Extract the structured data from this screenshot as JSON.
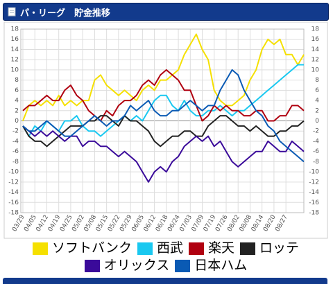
{
  "header": {
    "title": "パ・リーグ　貯金推移"
  },
  "chart_data": {
    "type": "line",
    "categories": [
      "03/29",
      null,
      "04/05",
      null,
      "04/12",
      null,
      "04/19",
      null,
      "04/25",
      null,
      "05/02",
      null,
      "05/08",
      null,
      "05/15",
      null,
      "05/22",
      null,
      "05/29",
      null,
      "06/05",
      null,
      "06/12",
      null,
      "06/18",
      null,
      "06/24",
      null,
      "07/03",
      null,
      "07/09",
      null,
      "07/19",
      null,
      "07/26",
      null,
      "08/02",
      null,
      "08/08",
      null,
      "08/14",
      null,
      "08/20",
      null,
      "08/27",
      null,
      null,
      null
    ],
    "series": [
      {
        "name": "ソフトバンク",
        "color": "#f5e000",
        "values": [
          0,
          3,
          4,
          3,
          4,
          3,
          5,
          3,
          4,
          3,
          4,
          4,
          8,
          9,
          7,
          6,
          5,
          6,
          5,
          4,
          6,
          7,
          6,
          8,
          8,
          9,
          10,
          13,
          15,
          17,
          14,
          12,
          6,
          4,
          3,
          3,
          4,
          5,
          8,
          10,
          14,
          16,
          15,
          16,
          13,
          13,
          11,
          13
        ]
      },
      {
        "name": "西武",
        "color": "#19c8f0",
        "values": [
          -1,
          -3,
          -1,
          -2,
          0,
          -1,
          -2,
          0,
          0,
          1,
          -1,
          -2,
          -2,
          -3,
          -2,
          -1,
          0,
          1,
          0,
          1,
          0,
          2,
          4,
          5,
          5,
          3,
          2,
          4,
          2,
          1,
          1,
          2,
          2,
          3,
          2,
          1,
          2,
          2,
          3,
          4,
          5,
          6,
          7,
          8,
          9,
          10,
          11,
          11
        ]
      },
      {
        "name": "楽天",
        "color": "#b00010",
        "values": [
          2,
          3,
          3,
          4,
          5,
          4,
          4,
          6,
          7,
          5,
          4,
          2,
          1,
          0,
          2,
          1,
          3,
          4,
          4,
          5,
          7,
          8,
          7,
          9,
          10,
          9,
          8,
          6,
          6,
          3,
          0,
          1,
          3,
          2,
          3,
          2,
          2,
          1,
          1,
          2,
          2,
          0,
          0,
          1,
          1,
          3,
          3,
          2
        ]
      },
      {
        "name": "ロッテ",
        "color": "#222222",
        "values": [
          -1,
          -3,
          -4,
          -4,
          -5,
          -4,
          -3,
          -2,
          -1,
          -1,
          -1,
          0,
          0,
          1,
          1,
          0,
          -1,
          1,
          0,
          0,
          -1,
          -2,
          -4,
          -5,
          -4,
          -3,
          -3,
          -2,
          -2,
          -3,
          -3,
          -1,
          0,
          1,
          1,
          0,
          -1,
          -1,
          -2,
          -1,
          -2,
          -3,
          -3,
          -2,
          -2,
          -1,
          -1,
          0
        ]
      },
      {
        "name": "オリックス",
        "color": "#3a0a9a",
        "values": [
          -1,
          -2,
          -3,
          -2,
          -3,
          -2,
          -3,
          -4,
          -3,
          -3,
          -5,
          -4,
          -4,
          -5,
          -5,
          -6,
          -7,
          -6,
          -7,
          -8,
          -10,
          -12,
          -10,
          -9,
          -10,
          -8,
          -7,
          -5,
          -4,
          -3,
          -4,
          -3,
          -5,
          -4,
          -6,
          -8,
          -9,
          -8,
          -7,
          -6,
          -6,
          -4,
          -5,
          -6,
          -6,
          -4,
          -5,
          -6
        ]
      },
      {
        "name": "日本ハム",
        "color": "#0a5ab4",
        "values": [
          -1,
          -2,
          -2,
          -1,
          0,
          -1,
          -2,
          -3,
          -3,
          -2,
          -1,
          0,
          1,
          0,
          -1,
          0,
          0,
          1,
          3,
          2,
          3,
          4,
          2,
          1,
          1,
          2,
          2,
          3,
          4,
          3,
          2,
          3,
          3,
          6,
          8,
          10,
          9,
          6,
          4,
          2,
          1,
          -1,
          -2,
          -4,
          -5,
          -6,
          -7,
          -8
        ]
      }
    ],
    "ylim": [
      -18,
      18
    ],
    "yticks": [
      -18,
      -16,
      -14,
      -12,
      -10,
      -8,
      -6,
      -4,
      -2,
      0,
      2,
      4,
      6,
      8,
      10,
      12,
      14,
      16,
      18
    ],
    "grid": true
  }
}
